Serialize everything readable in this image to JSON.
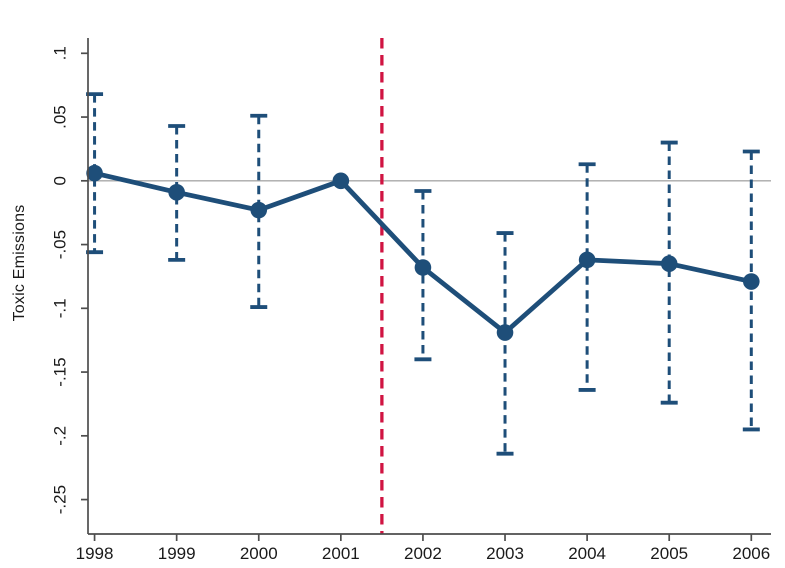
{
  "colors": {
    "navy": "#1e4e79",
    "treatment_red": "#d01442",
    "zero_line_gray": "#a8a8a8",
    "axis_gray": "#4d4d4d",
    "text": "#1a1a1a",
    "background": "#ffffff"
  },
  "chart_data": {
    "type": "line",
    "title": "",
    "xlabel": "",
    "ylabel": "Toxic Emissions",
    "x": [
      1998,
      1999,
      2000,
      2001,
      2002,
      2003,
      2004,
      2005,
      2006
    ],
    "series": [
      {
        "name": "point-estimate",
        "values": [
          0.006,
          -0.009,
          -0.023,
          0.0,
          -0.068,
          -0.119,
          -0.062,
          -0.065,
          -0.079
        ]
      }
    ],
    "ci_lower": [
      -0.056,
      -0.062,
      -0.099,
      null,
      -0.14,
      -0.214,
      -0.164,
      -0.174,
      -0.195
    ],
    "ci_upper": [
      0.068,
      0.043,
      0.051,
      null,
      -0.008,
      -0.041,
      0.013,
      0.03,
      0.023
    ],
    "treatment_line_x": 2001.5,
    "reference_line_y": 0,
    "x_tick_labels": [
      "1998",
      "1999",
      "2000",
      "2001",
      "2002",
      "2003",
      "2004",
      "2005",
      "2006"
    ],
    "y_tick_values": [
      0.1,
      0.05,
      0,
      -0.05,
      -0.1,
      -0.15,
      -0.2,
      -0.25
    ],
    "y_tick_labels": [
      ".1",
      ".05",
      "0",
      "-.05",
      "-.1",
      "-.15",
      "-.2",
      "-.25"
    ],
    "xlim": [
      1997.92,
      2006.24
    ],
    "ylim": [
      -0.277,
      0.112
    ],
    "grid": false,
    "legend_position": "none",
    "error_bar_style": "dashed-with-caps",
    "marker": "filled-circle"
  }
}
